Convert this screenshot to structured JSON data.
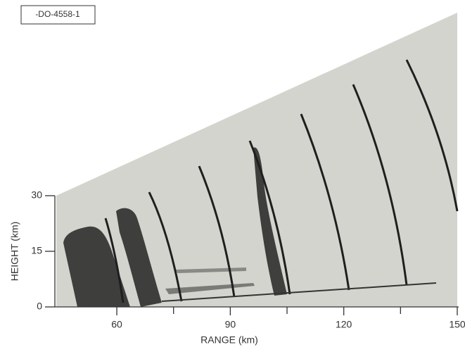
{
  "chart_data": {
    "type": "radar-rhi",
    "figure_id": "-DO-4558-1",
    "x_label": "RANGE (km)",
    "y_label": "HEIGHT (km)",
    "xlim": [
      44,
      150
    ],
    "xticks": [
      60,
      90,
      120,
      150
    ],
    "xminorticks": [
      75,
      105,
      135
    ],
    "ylim": [
      0,
      30
    ],
    "yticks": [
      0,
      15,
      30
    ]
  }
}
